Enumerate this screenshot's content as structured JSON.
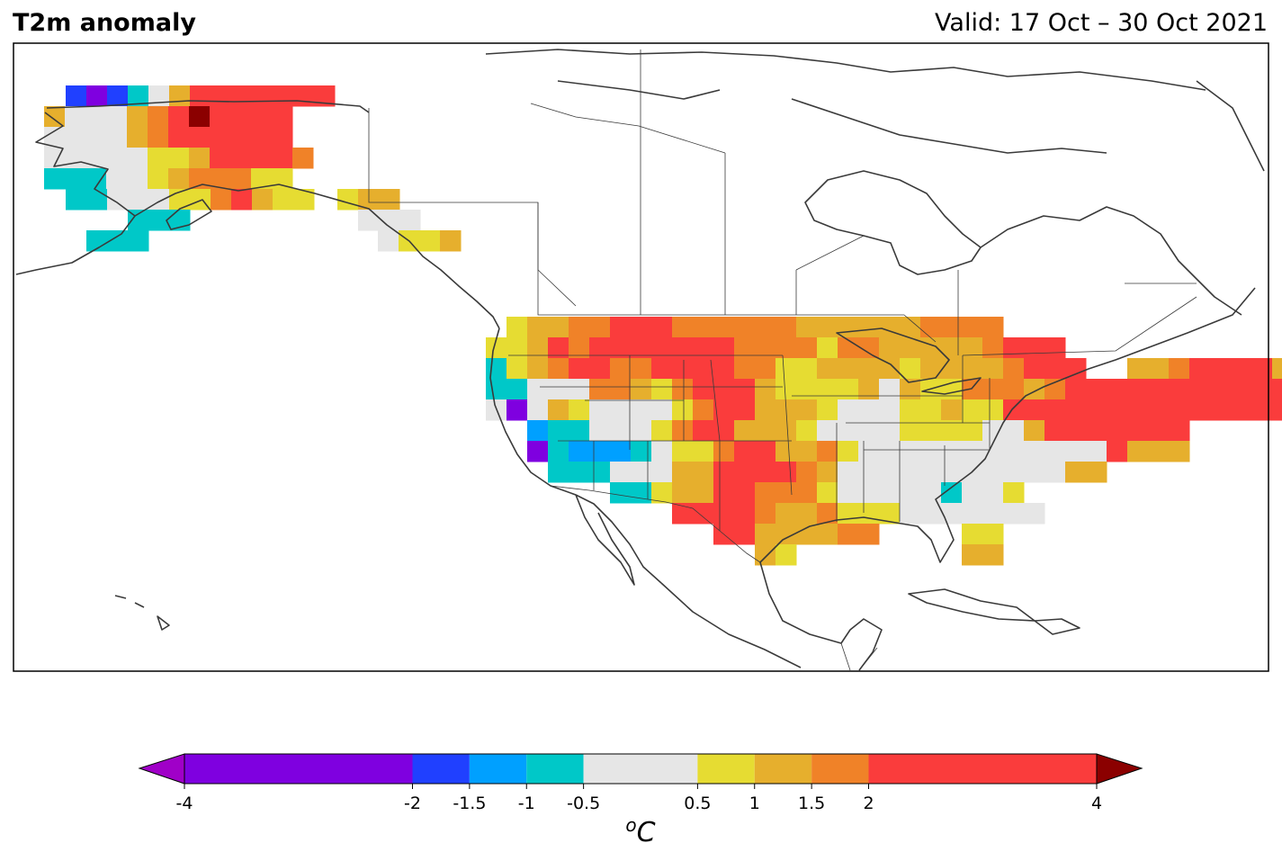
{
  "title": "T2m anomaly",
  "valid": "Valid: 17 Oct – 30 Oct 2021",
  "unit_base": "C",
  "unit_sup": "o",
  "colorbar": {
    "bounds": [
      -4,
      -2,
      -1.5,
      -1,
      -0.5,
      0.5,
      1,
      1.5,
      2,
      4
    ],
    "tick_labels": [
      "-4",
      "-2",
      "-1.5",
      "-1",
      "-0.5",
      "0.5",
      "1",
      "1.5",
      "2",
      "4"
    ],
    "colors": [
      "#7f00e0",
      "#2040ff",
      "#00a0ff",
      "#00c8c8",
      "#e6e6e6",
      "#e6dc32",
      "#e6af2d",
      "#f08228",
      "#fa3c3c"
    ],
    "under_color": "#a000c8",
    "over_color": "#8b0000"
  },
  "legend": {
    "cat_a": "#e6e6e6",
    "cat_b": "#e6dc32",
    "cat_c": "#e6af2d",
    "cat_d": "#f08228",
    "cat_e": "#fa3c3c",
    "cat_f": "#00c8c8",
    "cat_g": "#00a0ff",
    "cat_h": "#2040ff",
    "cat_i": "#7f00e0",
    "cat_j": "#8b0000"
  }
}
